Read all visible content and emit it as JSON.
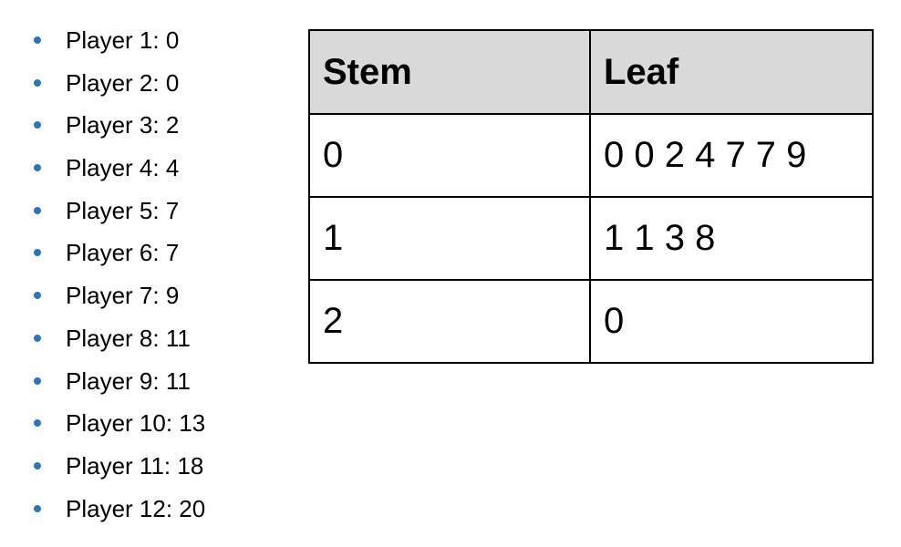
{
  "players": [
    {
      "label": "Player 1: 0"
    },
    {
      "label": "Player 2: 0"
    },
    {
      "label": "Player 3: 2"
    },
    {
      "label": "Player 4: 4"
    },
    {
      "label": "Player 5: 7"
    },
    {
      "label": "Player 6: 7"
    },
    {
      "label": "Player 7: 9"
    },
    {
      "label": "Player 8: 11"
    },
    {
      "label": "Player 9: 11"
    },
    {
      "label": "Player 10: 13"
    },
    {
      "label": "Player 11: 18"
    },
    {
      "label": "Player 12: 20"
    }
  ],
  "colors": {
    "bullet": "#2e75b6",
    "header_bg": "#d9d9d9"
  },
  "chart_data": {
    "type": "table",
    "columns": [
      "Stem",
      "Leaf"
    ],
    "rows": [
      {
        "stem": "0",
        "leaf": "0 0 2 4 7 7 9"
      },
      {
        "stem": "1",
        "leaf": "1 1 3 8"
      },
      {
        "stem": "2",
        "leaf": "0"
      }
    ],
    "values": [
      0,
      0,
      2,
      4,
      7,
      7,
      9,
      11,
      11,
      13,
      18,
      20
    ]
  }
}
